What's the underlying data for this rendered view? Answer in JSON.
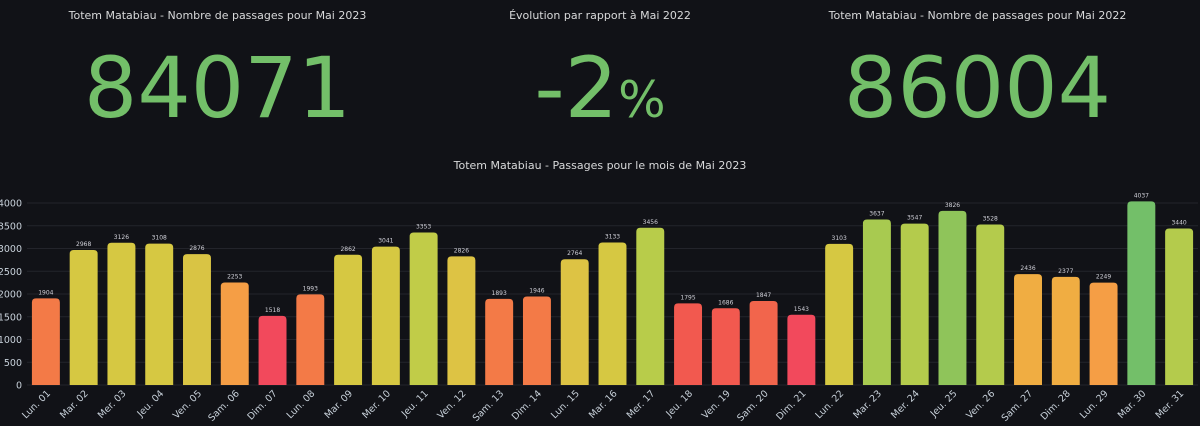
{
  "stats": [
    {
      "title": "Totem Matabiau - Nombre de passages pour Mai 2023",
      "value": "84071",
      "unit": ""
    },
    {
      "title": "Évolution par rapport à Mai 2022",
      "value": "-2",
      "unit": "%"
    },
    {
      "title": "Totem Matabiau - Nombre de passages pour Mai 2022",
      "value": "86004",
      "unit": ""
    }
  ],
  "colors": {
    "value_green": "#73bf69",
    "background": "#111217"
  },
  "chart_data": {
    "type": "bar",
    "title": "Totem Matabiau - Passages pour le mois de Mai 2023",
    "xlabel": "",
    "ylabel": "",
    "ylim": [
      0,
      4000
    ],
    "yticks": [
      0,
      500,
      1000,
      1500,
      2000,
      2500,
      3000,
      3500,
      4000
    ],
    "grid": true,
    "categories": [
      "Lun. 01",
      "Mar. 02",
      "Mer. 03",
      "Jeu. 04",
      "Ven. 05",
      "Sam. 06",
      "Dim. 07",
      "Lun. 08",
      "Mar. 09",
      "Mer. 10",
      "Jeu. 11",
      "Ven. 12",
      "Sam. 13",
      "Dim. 14",
      "Lun. 15",
      "Mar. 16",
      "Mer. 17",
      "Jeu. 18",
      "Ven. 19",
      "Sam. 20",
      "Dim. 21",
      "Lun. 22",
      "Mar. 23",
      "Mer. 24",
      "Jeu. 25",
      "Ven. 26",
      "Sam. 27",
      "Dim. 28",
      "Lun. 29",
      "Mar. 30",
      "Mer. 31"
    ],
    "values": [
      1904,
      2968,
      3126,
      3108,
      2876,
      2253,
      1518,
      1993,
      2862,
      3041,
      3353,
      2826,
      1893,
      1946,
      2764,
      3133,
      3456,
      1795,
      1686,
      1847,
      1543,
      3103,
      3637,
      3547,
      3826,
      3528,
      2436,
      2377,
      2249,
      4037,
      3440
    ],
    "data_labels": [
      "1904",
      "2968",
      "3126",
      "3108",
      "2876",
      "2253",
      "1518",
      "1993",
      "2862",
      "3041",
      "3353",
      "2826",
      "1893",
      "1946",
      "2764",
      "3133",
      "3456",
      "1795",
      "1686",
      "1847",
      "1543",
      "3103",
      "3637",
      "3547",
      "3826",
      "3528",
      "2436",
      "2377",
      "2249",
      "4037",
      "3440"
    ],
    "bar_colors": [
      "#f37a47",
      "#d6c842",
      "#d6c842",
      "#d6c842",
      "#d9c444",
      "#f59e45",
      "#f2495c",
      "#f37a47",
      "#d6c842",
      "#d6c842",
      "#c1cc48",
      "#ddc344",
      "#f37a47",
      "#f37a47",
      "#ddc344",
      "#d6c842",
      "#b8cc4a",
      "#f2594f",
      "#f2594f",
      "#f2654c",
      "#f2495c",
      "#d6c842",
      "#a8ca50",
      "#b4cb4c",
      "#8fc45a",
      "#b4cb4c",
      "#f0ad42",
      "#f0ad42",
      "#f59e45",
      "#73bf69",
      "#b4cb4c"
    ]
  }
}
